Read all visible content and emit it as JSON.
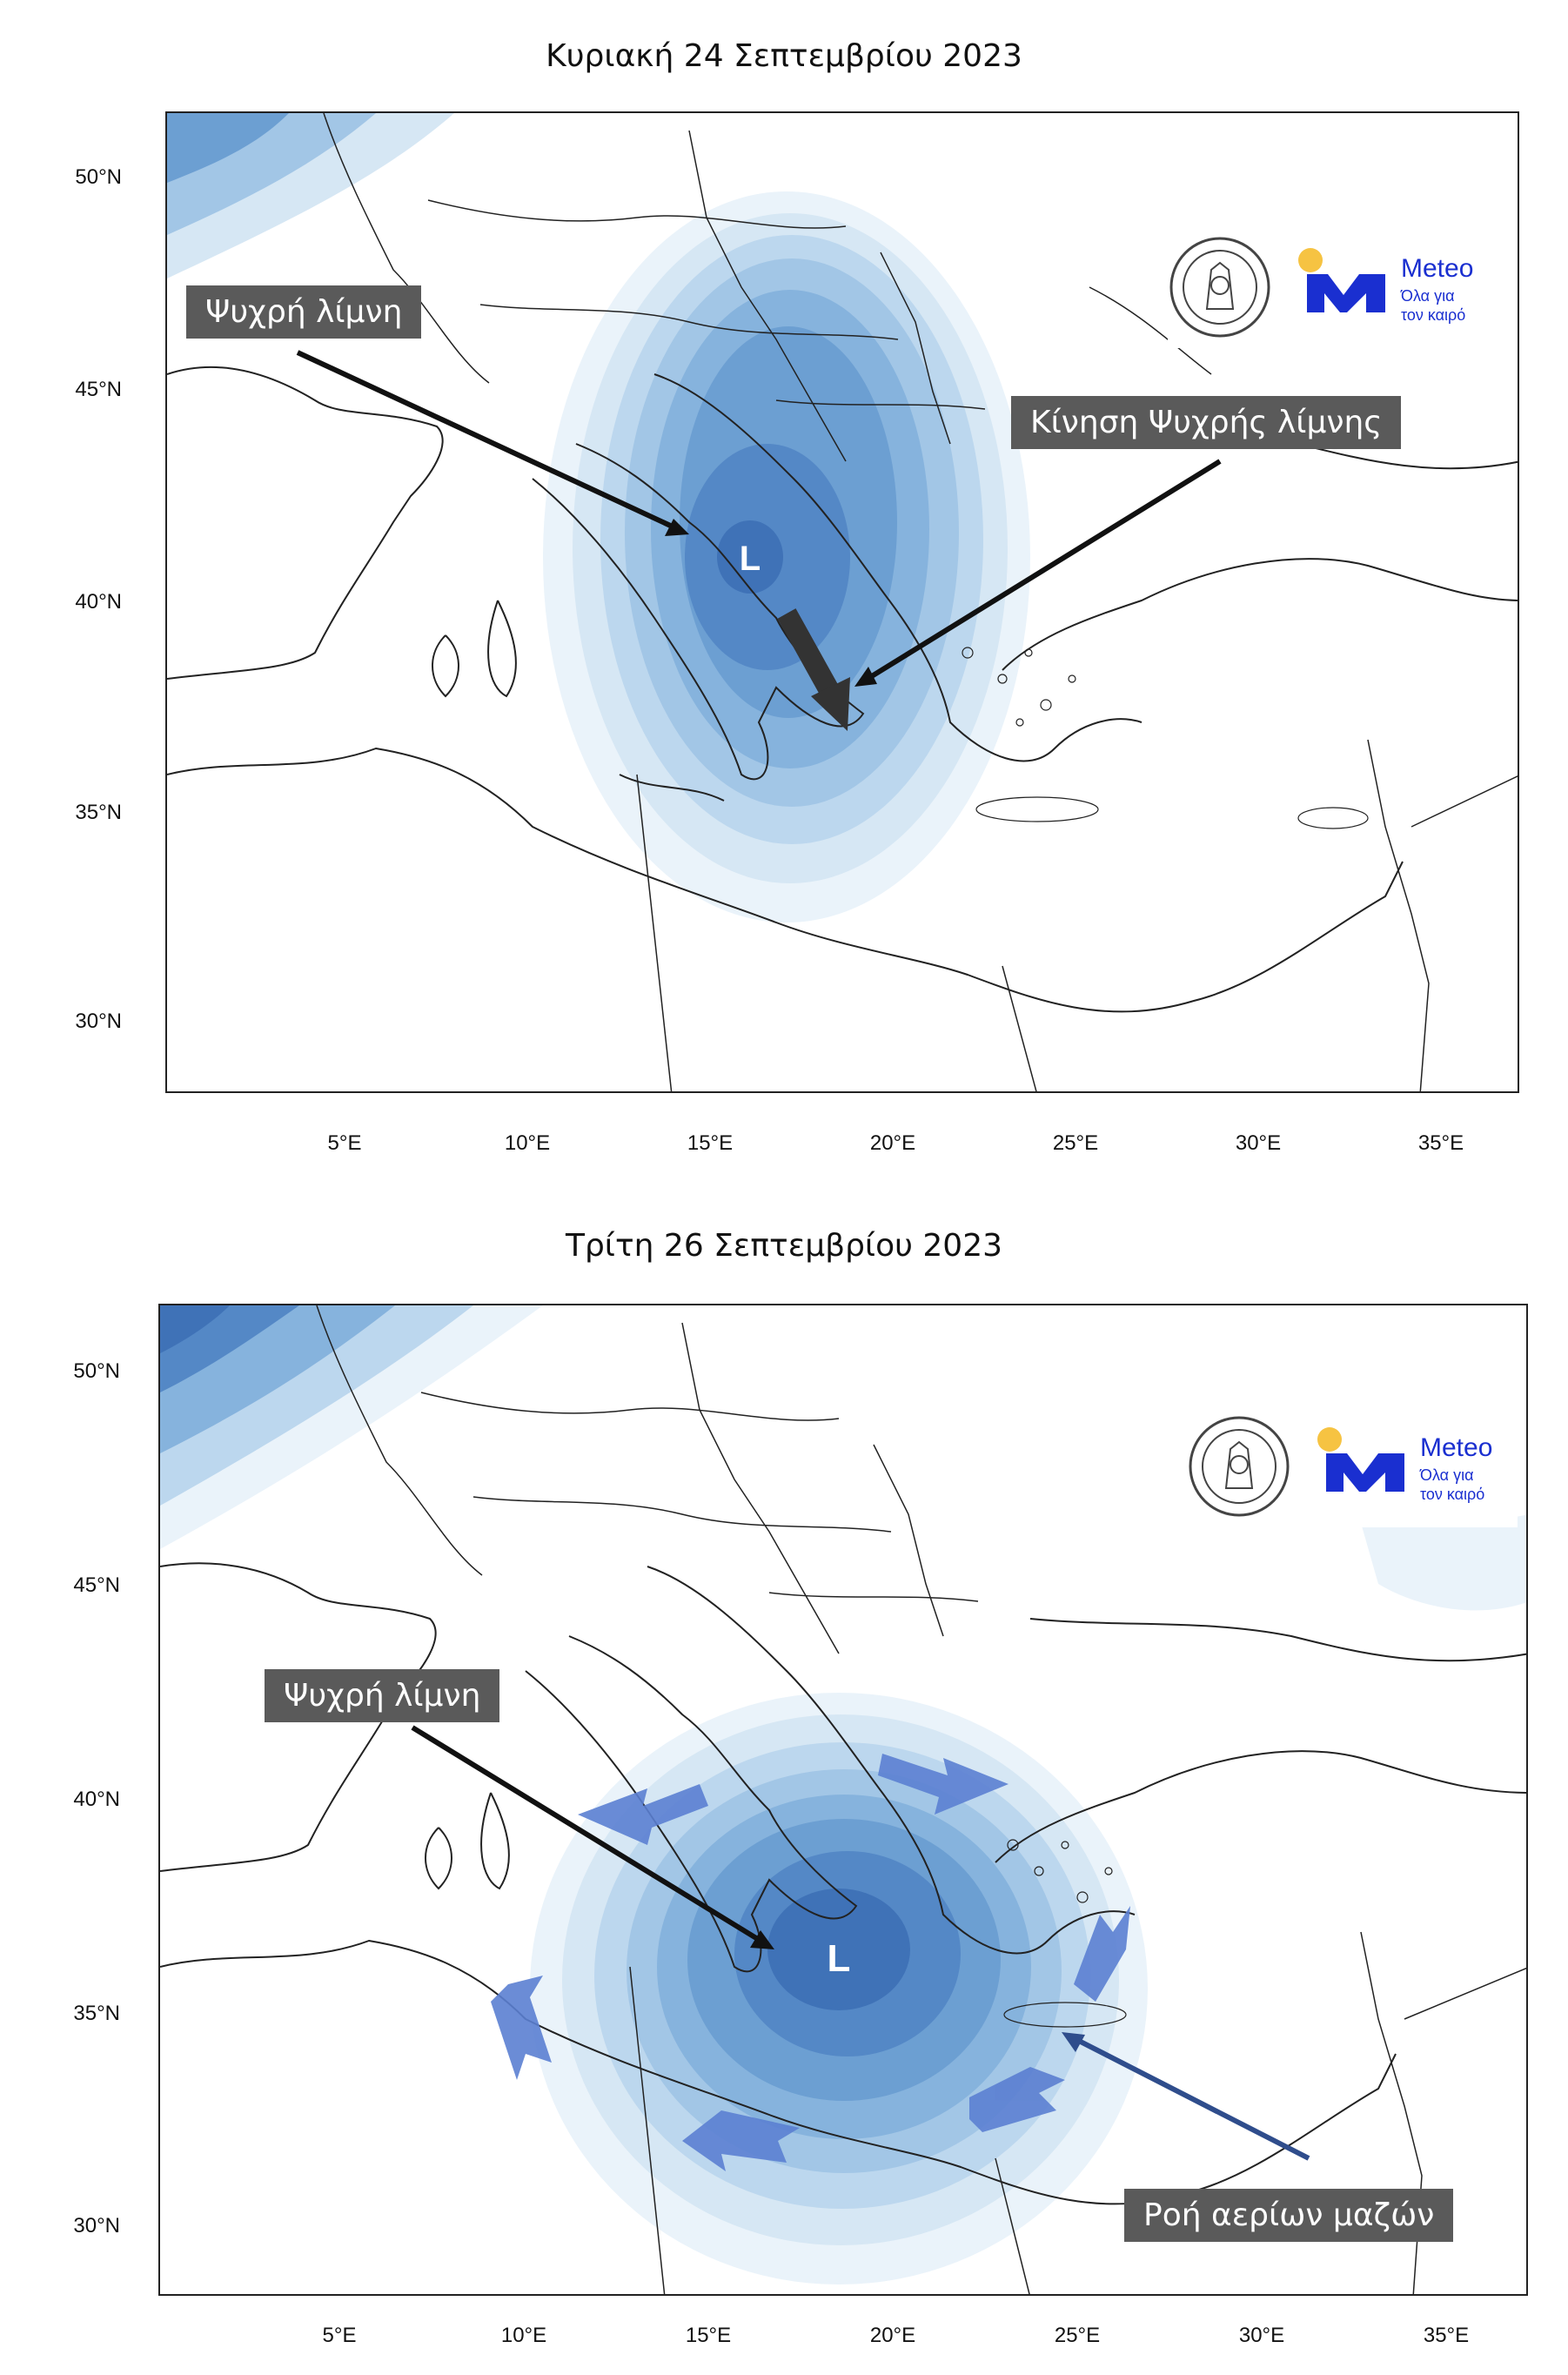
{
  "panels": [
    {
      "title": "Κυριακή 24 Σεπτεμβρίου 2023",
      "lat_labels": [
        "50°N",
        "45°N",
        "40°N",
        "35°N",
        "30°N"
      ],
      "lon_labels": [
        "5°E",
        "10°E",
        "15°E",
        "20°E",
        "25°E",
        "30°E",
        "35°E"
      ],
      "callouts": [
        "Ψυχρή λίμνη",
        "Κίνηση Ψυχρής λίμνης"
      ],
      "low_symbol": "L",
      "logo_name": "Meteo",
      "logo_tagline_1": "Όλα για",
      "logo_tagline_2": "τον καιρό"
    },
    {
      "title": "Τρίτη 26 Σεπτεμβρίου 2023",
      "lat_labels": [
        "50°N",
        "45°N",
        "40°N",
        "35°N",
        "30°N"
      ],
      "lon_labels": [
        "5°E",
        "10°E",
        "15°E",
        "20°E",
        "25°E",
        "30°E",
        "35°E"
      ],
      "callouts": [
        "Ψυχρή λίμνη",
        "Ροή αερίων μαζών"
      ],
      "low_symbol": "L",
      "logo_name": "Meteo",
      "logo_tagline_1": "Όλα για",
      "logo_tagline_2": "τον καιρό"
    }
  ],
  "colors": {
    "contour_fills": [
      "#eaf3fa",
      "#d6e7f4",
      "#bcd7ee",
      "#a2c6e6",
      "#86b3dd",
      "#6c9fd2",
      "#5488c6",
      "#3f72b7"
    ],
    "callout_bg": "#5a5a5a",
    "arrow": "#111111",
    "flow_arrow": "#5b7fd1",
    "pointer_blue": "#2f4d8c",
    "meteo_blue": "#1a2fd0",
    "meteo_sun": "#f6c342"
  },
  "icons": {
    "observatory_seal": "observatory-seal-icon",
    "meteo_logo": "meteo-logo-icon"
  }
}
